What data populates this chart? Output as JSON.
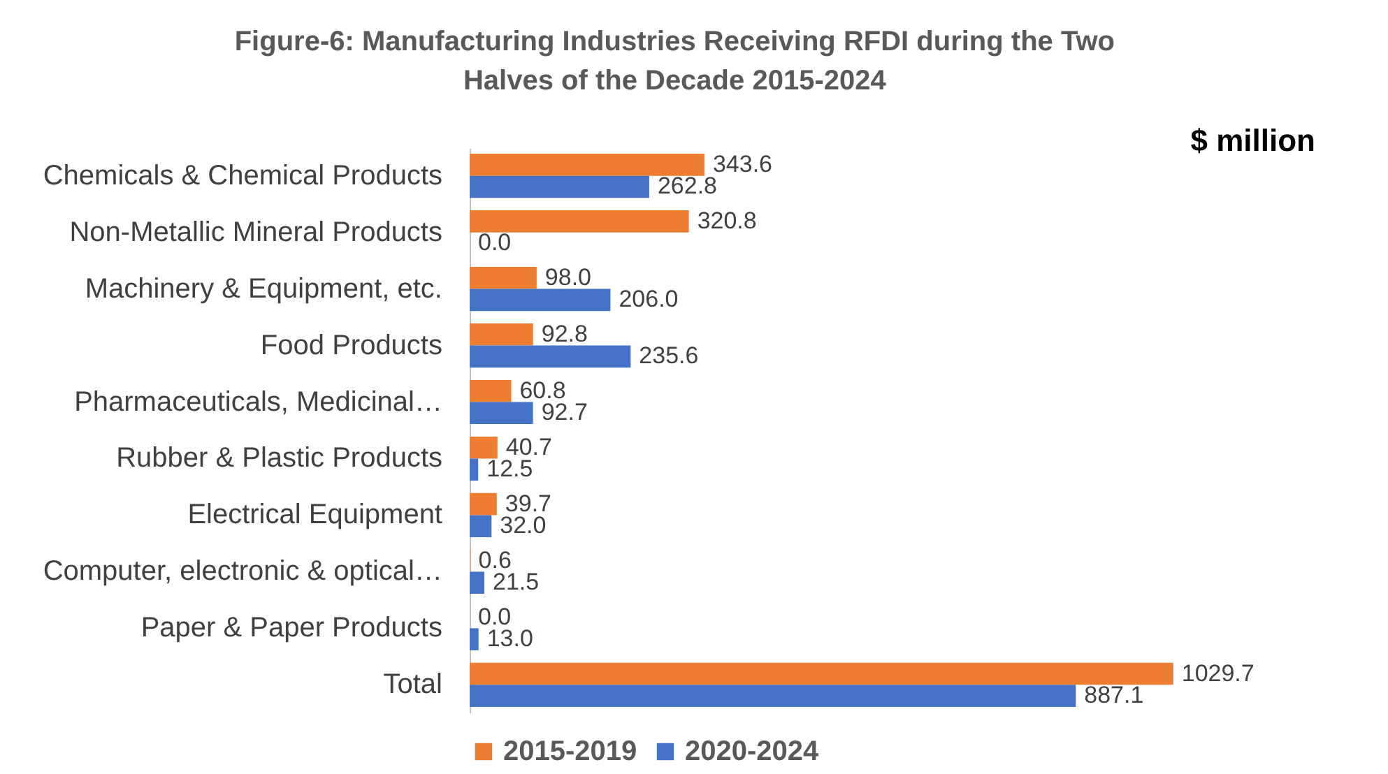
{
  "chart_data": {
    "type": "bar",
    "orientation": "horizontal",
    "title": "Figure-6: Manufacturing Industries Receiving RFDI during the Two Halves of the Decade 2015-2024",
    "annotations": [
      "$ million"
    ],
    "categories": [
      "Chemicals & Chemical Products",
      "Non-Metallic Mineral Products",
      "Machinery & Equipment, etc.",
      "Food Products",
      "Pharmaceuticals, Medicinal…",
      "Rubber & Plastic Products",
      "Electrical Equipment",
      "Computer, electronic & optical…",
      "Paper & Paper Products",
      "Total"
    ],
    "series": [
      {
        "name": "2015-2019",
        "color": "#ed7d31",
        "values": [
          343.6,
          320.8,
          98.0,
          92.8,
          60.8,
          40.7,
          39.7,
          0.6,
          0.0,
          1029.7
        ],
        "value_labels": [
          "343.6",
          "320.8",
          "98.0",
          "92.8",
          "60.8",
          "40.7",
          "39.7",
          "0.6",
          "0.0",
          "1029.7"
        ]
      },
      {
        "name": "2020-2024",
        "color": "#4472c4",
        "values": [
          262.8,
          0.0,
          206.0,
          235.6,
          92.7,
          12.5,
          32.0,
          21.5,
          13.0,
          887.1
        ],
        "value_labels": [
          "262.8",
          "0.0",
          "206.0",
          "235.6",
          "92.7",
          "12.5",
          "32.0",
          "21.5",
          "13.0",
          "887.1"
        ]
      }
    ],
    "legend": "bottom",
    "grid": false
  }
}
